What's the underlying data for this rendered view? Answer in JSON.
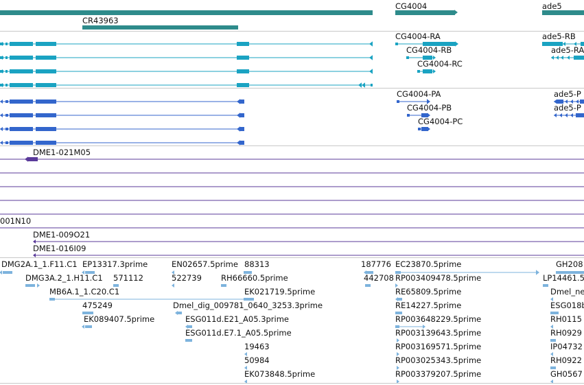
{
  "colors": {
    "gene": "#2e8b8b",
    "transcript": "#1aa3c2",
    "protein": "#3366cc",
    "clone": "#5a3a9a",
    "est": "#7db3dd",
    "separator": "#c8c8c8"
  },
  "tracks": {
    "genes": [
      {
        "id": "g-cg4004",
        "label": "CG4004"
      },
      {
        "id": "g-ade5",
        "label": "ade5"
      },
      {
        "id": "g-cr43963",
        "label": "CR43963"
      }
    ],
    "transcripts": [
      {
        "id": "t-cg4004-ra",
        "label": "CG4004-RA"
      },
      {
        "id": "t-cg4004-rb",
        "label": "CG4004-RB"
      },
      {
        "id": "t-cg4004-rc",
        "label": "CG4004-RC"
      },
      {
        "id": "t-ade5-rb",
        "label": "ade5-RB"
      },
      {
        "id": "t-ade5-ra",
        "label": "ade5-RA"
      }
    ],
    "proteins": [
      {
        "id": "p-cg4004-pa",
        "label": "CG4004-PA"
      },
      {
        "id": "p-cg4004-pb",
        "label": "CG4004-PB"
      },
      {
        "id": "p-cg4004-pc",
        "label": "CG4004-PC"
      },
      {
        "id": "p-ade5-1",
        "label": "ade5-P"
      },
      {
        "id": "p-ade5-2",
        "label": "ade5-P"
      }
    ],
    "clones": [
      {
        "id": "c-021m05",
        "label": "DME1-021M05"
      },
      {
        "id": "c-001n10",
        "label": "001N10"
      },
      {
        "id": "c-009o21",
        "label": "DME1-009O21"
      },
      {
        "id": "c-016i09",
        "label": "DME1-016I09"
      }
    ],
    "ests": [
      {
        "id": "e1",
        "label": "DMG2A.1_1.F11.C1"
      },
      {
        "id": "e2",
        "label": "EP13317.3prime"
      },
      {
        "id": "e3",
        "label": "EN02657.5prime"
      },
      {
        "id": "e4",
        "label": "88313"
      },
      {
        "id": "e5",
        "label": "187776"
      },
      {
        "id": "e6",
        "label": "EC23870.5prime"
      },
      {
        "id": "e7",
        "label": "GH208"
      },
      {
        "id": "e8",
        "label": "DMG3A.2_1.H11.C1"
      },
      {
        "id": "e9",
        "label": "571112"
      },
      {
        "id": "e10",
        "label": "522739"
      },
      {
        "id": "e11",
        "label": "RH66660.5prime"
      },
      {
        "id": "e12",
        "label": "442708"
      },
      {
        "id": "e13",
        "label": "RP003409478.5prime"
      },
      {
        "id": "e14",
        "label": "LP14461.5"
      },
      {
        "id": "e15",
        "label": "MB6A.1_1.C20.C1"
      },
      {
        "id": "e16",
        "label": "EK021719.5prime"
      },
      {
        "id": "e17",
        "label": "RE65809.5prime"
      },
      {
        "id": "e18",
        "label": "Dmel_ne"
      },
      {
        "id": "e19",
        "label": "475249"
      },
      {
        "id": "e20",
        "label": "Dmel_dig_009781_0640_3253.3prime"
      },
      {
        "id": "e21",
        "label": "RE14227.5prime"
      },
      {
        "id": "e22",
        "label": "ESG018b"
      },
      {
        "id": "e23",
        "label": "EK089407.5prime"
      },
      {
        "id": "e24",
        "label": "ESG011d.E21_A05.3prime"
      },
      {
        "id": "e25",
        "label": "RP003648229.5prime"
      },
      {
        "id": "e26",
        "label": "RH0115"
      },
      {
        "id": "e27",
        "label": "ESG011d.E7.1_A05.5prime"
      },
      {
        "id": "e28",
        "label": "RP003139643.5prime"
      },
      {
        "id": "e29",
        "label": "RH0929"
      },
      {
        "id": "e30",
        "label": "19463"
      },
      {
        "id": "e31",
        "label": "RP003169571.5prime"
      },
      {
        "id": "e32",
        "label": "IP04732"
      },
      {
        "id": "e33",
        "label": "50984"
      },
      {
        "id": "e34",
        "label": "RP003025343.5prime"
      },
      {
        "id": "e35",
        "label": "RH0922"
      },
      {
        "id": "e36",
        "label": "EK073848.5prime"
      },
      {
        "id": "e37",
        "label": "RP003379207.5prime"
      },
      {
        "id": "e38",
        "label": "GH0567"
      }
    ]
  }
}
